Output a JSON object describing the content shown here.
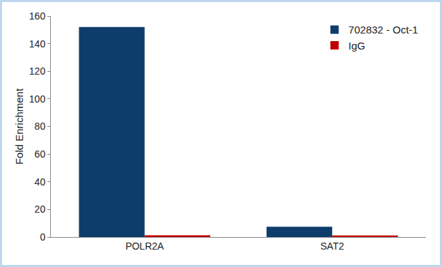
{
  "chart_data": {
    "type": "bar",
    "categories": [
      "POLR2A",
      "SAT2"
    ],
    "series": [
      {
        "name": "702832 - Oct-1",
        "color": "#0e3d6b",
        "values": [
          152,
          7.5
        ]
      },
      {
        "name": "IgG",
        "color": "#c00000",
        "values": [
          1.2,
          1.1
        ]
      }
    ],
    "y_label": "Fold Enrichment",
    "ylim": [
      0,
      160
    ],
    "yticks": [
      0,
      20,
      40,
      60,
      80,
      100,
      120,
      140,
      160
    ],
    "grid": false,
    "legend": "top-right"
  }
}
